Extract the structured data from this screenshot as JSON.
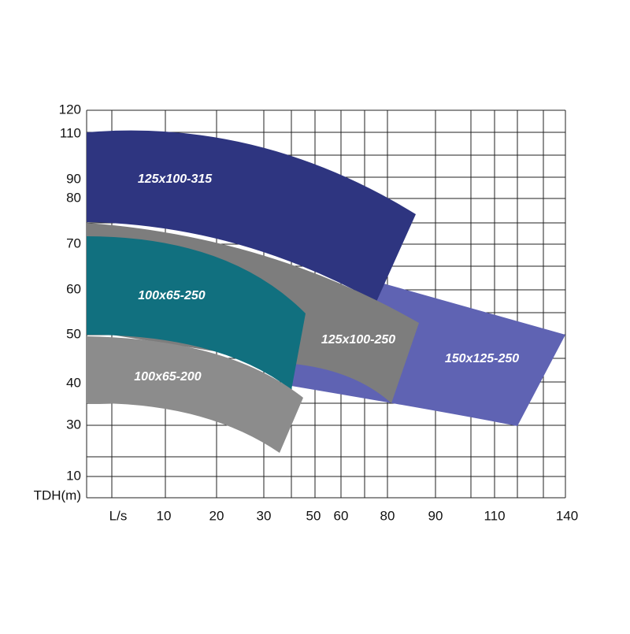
{
  "y_axis": {
    "label": "TDH(m)",
    "ticks": [
      120,
      110,
      90,
      80,
      70,
      60,
      50,
      40,
      30,
      10
    ]
  },
  "x_axis": {
    "label": "L/s",
    "ticks": [
      10,
      20,
      30,
      50,
      60,
      80,
      90,
      110,
      140
    ]
  },
  "regions": [
    {
      "label": "150x125-250"
    },
    {
      "label": "125x100-315"
    },
    {
      "label": "125x100-250"
    },
    {
      "label": "100x65-250"
    },
    {
      "label": "100x65-200"
    }
  ]
}
